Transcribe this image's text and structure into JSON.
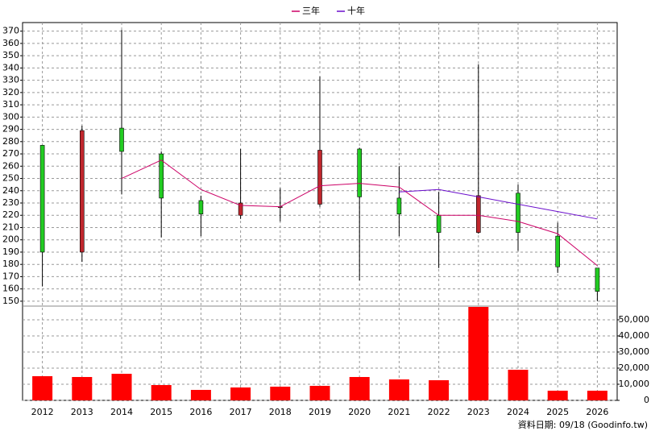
{
  "chart_data": {
    "type": "candlestick",
    "categories": [
      "2012",
      "2013",
      "2014",
      "2015",
      "2016",
      "2017",
      "2018",
      "2019",
      "2020",
      "2021",
      "2022",
      "2023",
      "2024",
      "2025",
      "2026"
    ],
    "open": [
      277,
      190,
      291,
      270,
      232,
      220,
      227,
      229,
      274,
      234,
      220,
      206,
      238,
      203,
      177
    ],
    "high": [
      277,
      293,
      371,
      272,
      236,
      274,
      242,
      333,
      275,
      260,
      239,
      343,
      245,
      214,
      177
    ],
    "low": [
      162,
      182,
      237,
      202,
      203,
      217,
      215,
      227,
      167,
      203,
      177,
      205,
      191,
      173,
      150
    ],
    "close": [
      190,
      289,
      272,
      234,
      221,
      230,
      227,
      273,
      235,
      221,
      206,
      236,
      206,
      178,
      158
    ],
    "up_color": "#c0272d",
    "down_color": "#22cc22",
    "lines": [
      {
        "name": "三年",
        "color": "#cc0066",
        "values": [
          null,
          null,
          250,
          265,
          241,
          228,
          227,
          244,
          246,
          243,
          220,
          220,
          215,
          205,
          179
        ]
      },
      {
        "name": "十年",
        "color": "#6a0dcc",
        "values": [
          null,
          null,
          null,
          null,
          null,
          null,
          null,
          null,
          null,
          239,
          241,
          235,
          229,
          223,
          217
        ]
      }
    ],
    "ylim": [
      146,
      377
    ],
    "yticks": [
      150,
      160,
      170,
      180,
      190,
      200,
      210,
      220,
      230,
      240,
      250,
      260,
      270,
      280,
      290,
      300,
      310,
      320,
      330,
      340,
      350,
      360,
      370
    ],
    "volume": {
      "color": "#ff0000",
      "values": [
        15000,
        14500,
        16500,
        9500,
        6500,
        8000,
        8500,
        9000,
        14500,
        13000,
        12500,
        58000,
        19000,
        6000,
        6000
      ],
      "ylim": [
        0,
        58500
      ],
      "yticks": [
        0,
        {
          "value": 10000,
          "label": "10,000"
        },
        {
          "value": 20000,
          "label": "20,000"
        },
        {
          "value": 30000,
          "label": "30,000"
        },
        {
          "value": 40000,
          "label": "40,000"
        },
        {
          "value": 50000,
          "label": "50,000"
        }
      ]
    },
    "grid": true,
    "footer": "資料日期: 09/18 (Goodinfo.tw)"
  }
}
